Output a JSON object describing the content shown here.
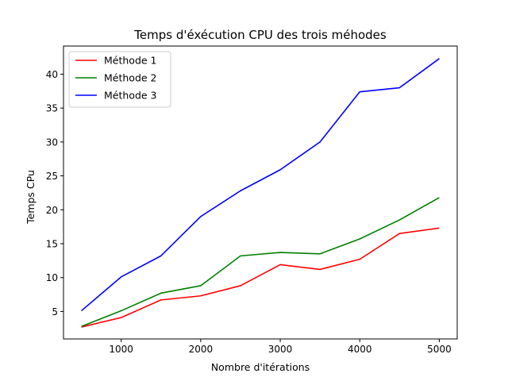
{
  "chart_data": {
    "type": "line",
    "title": "Temps d'éxécution CPU des trois méhodes",
    "xlabel": "Nombre d'itérations",
    "ylabel": "Temps CPu",
    "x": [
      500,
      1000,
      1500,
      2000,
      2500,
      3000,
      3500,
      4000,
      4500,
      5000
    ],
    "xlim": [
      275,
      5225
    ],
    "ylim": [
      0.95,
      44.15
    ],
    "xticks": [
      1000,
      2000,
      3000,
      4000,
      5000
    ],
    "yticks": [
      5,
      10,
      15,
      20,
      25,
      30,
      35,
      40
    ],
    "grid": false,
    "legend_position": "top-left",
    "series": [
      {
        "name": "Méthode 1",
        "color": "#ff0000",
        "values": [
          2.7,
          4.1,
          6.7,
          7.3,
          8.8,
          11.9,
          11.2,
          12.7,
          16.5,
          17.3
        ]
      },
      {
        "name": "Méthode 2",
        "color": "#008000",
        "values": [
          2.8,
          5.1,
          7.7,
          8.8,
          13.2,
          13.7,
          13.5,
          15.7,
          18.5,
          21.8
        ]
      },
      {
        "name": "Méthode 3",
        "color": "#0000ff",
        "values": [
          5.1,
          10.1,
          13.2,
          19.0,
          22.8,
          25.9,
          30.0,
          37.4,
          38.0,
          42.3
        ]
      }
    ]
  }
}
